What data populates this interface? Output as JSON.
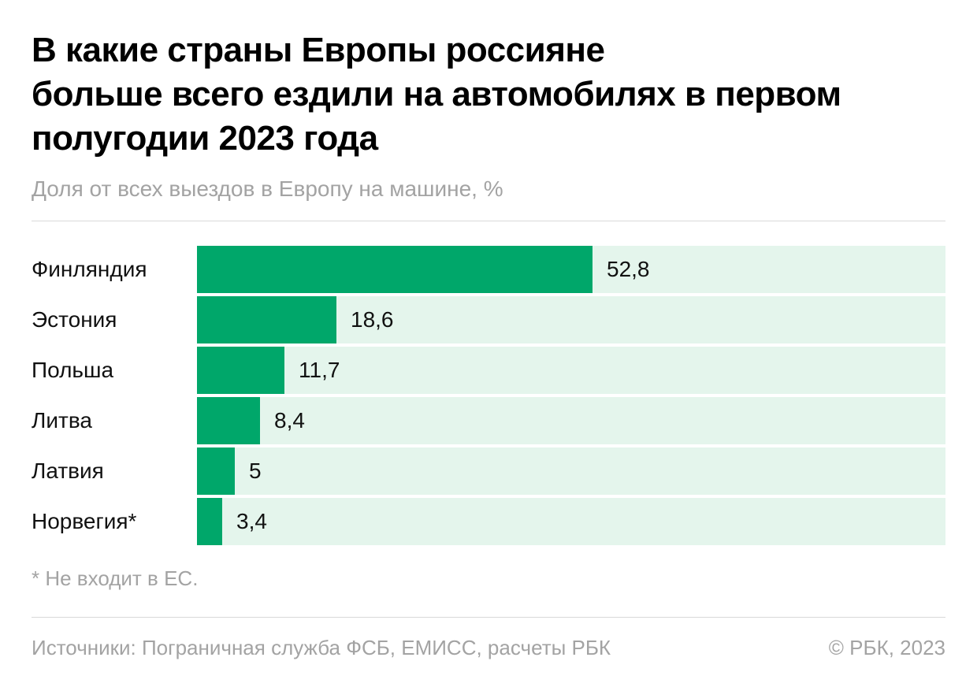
{
  "header": {
    "title_lines": [
      "В какие страны Европы россияне",
      "больше всего ездили на автомобилях в первом",
      "полугодии 2023 года"
    ],
    "subtitle": "Доля от всех выездов в Европу на машине, %"
  },
  "chart_data": {
    "type": "bar",
    "orientation": "horizontal",
    "title": "В какие страны Европы россияне больше всего ездили на автомобилях в первом полугодии 2023 года",
    "subtitle": "Доля от всех выездов в Европу на машине, %",
    "categories": [
      "Финляндия",
      "Эстония",
      "Польша",
      "Литва",
      "Латвия",
      "Норвегия*"
    ],
    "values": [
      52.8,
      18.6,
      11.7,
      8.4,
      5,
      3.4
    ],
    "value_labels": [
      "52,8",
      "18,6",
      "11,7",
      "8,4",
      "5",
      "3,4"
    ],
    "xlim": [
      0,
      100
    ],
    "grid": false,
    "legend": "none",
    "colors": {
      "bar": "#00a76a",
      "track": "#e4f5ec"
    }
  },
  "footer": {
    "footnote": "* Не входит в ЕС.",
    "sources": "Источники: Пограничная служба ФСБ, ЕМИСС, расчеты РБК",
    "copyright": "© РБК, 2023"
  }
}
